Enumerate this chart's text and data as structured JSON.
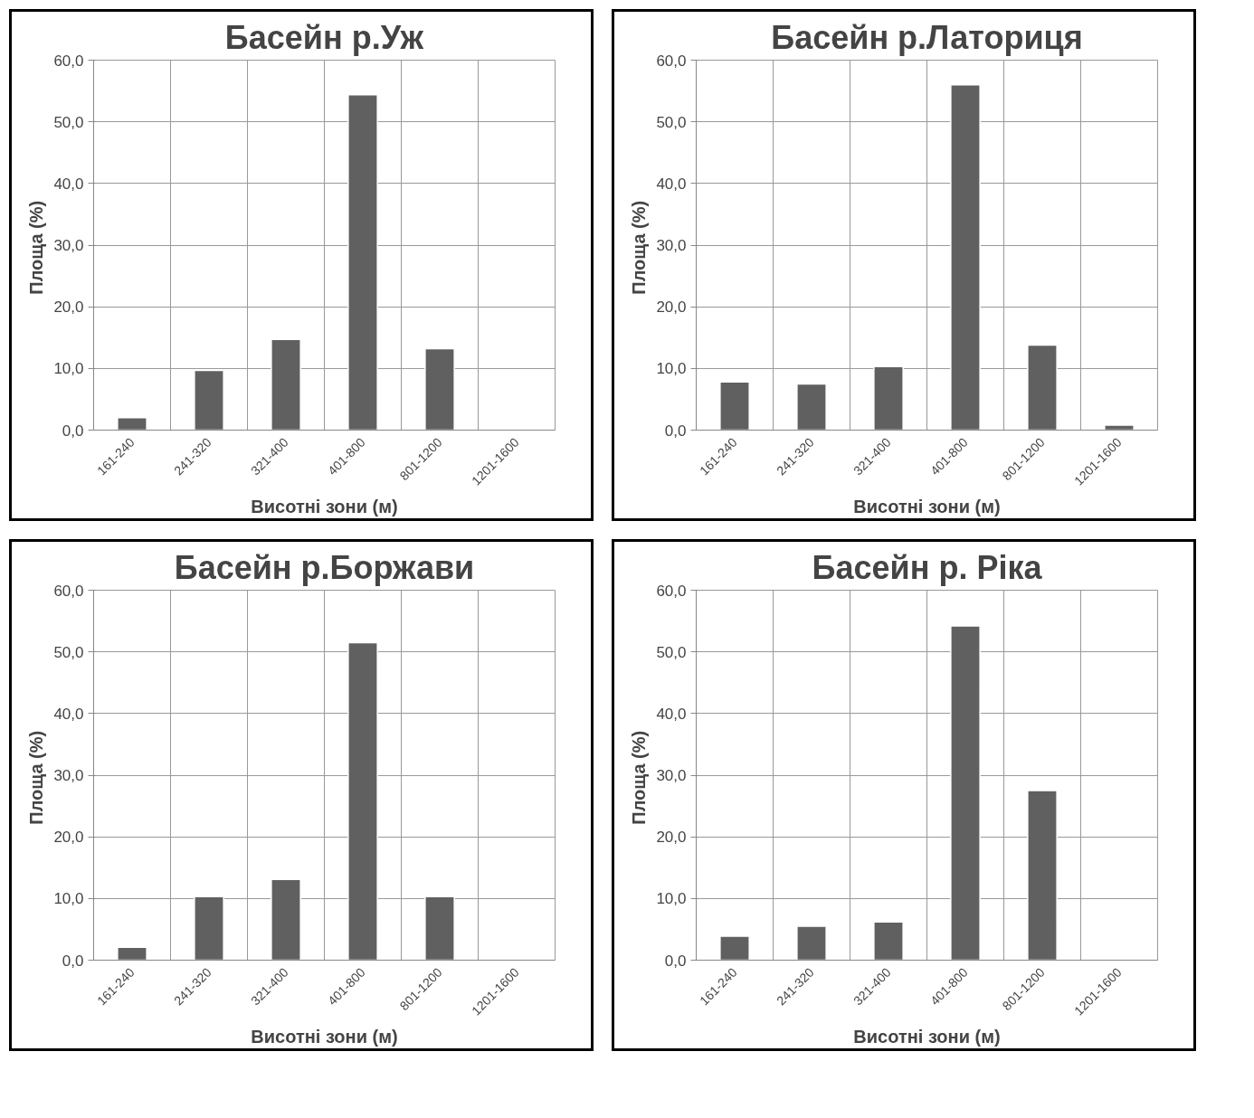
{
  "chart_data": [
    {
      "type": "bar",
      "title": "Басейн р.Уж",
      "xlabel": "Висотні зони (м)",
      "ylabel": "Площа  (%)",
      "categories": [
        "161-240",
        "241-320",
        "321-400",
        "401-800",
        "801-1200",
        "1201-1600"
      ],
      "values": [
        2.0,
        9.7,
        14.7,
        54.4,
        13.2,
        0.1
      ],
      "color": "#606060",
      "ylim": [
        0,
        60
      ],
      "yticks": [
        {
          "value": 0,
          "label": "0,0"
        },
        {
          "value": 10,
          "label": "10,0"
        },
        {
          "value": 20,
          "label": "20,0"
        },
        {
          "value": 30,
          "label": "30,0"
        },
        {
          "value": 40,
          "label": "40,0"
        },
        {
          "value": 50,
          "label": "50,0"
        },
        {
          "value": 60,
          "label": "60,0"
        }
      ],
      "grid": true
    },
    {
      "type": "bar",
      "title": "Басейн р.Латориця",
      "xlabel": "Висотні зони (м)",
      "ylabel": "Площа  (%)",
      "categories": [
        "161-240",
        "241-320",
        "321-400",
        "401-800",
        "801-1200",
        "1201-1600"
      ],
      "values": [
        7.8,
        7.5,
        10.3,
        56.0,
        13.8,
        0.8
      ],
      "color": "#606060",
      "ylim": [
        0,
        60
      ],
      "yticks": [
        {
          "value": 0,
          "label": "0,0"
        },
        {
          "value": 10,
          "label": "10,0"
        },
        {
          "value": 20,
          "label": "20,0"
        },
        {
          "value": 30,
          "label": "30,0"
        },
        {
          "value": 40,
          "label": "40,0"
        },
        {
          "value": 50,
          "label": "50,0"
        },
        {
          "value": 60,
          "label": "60,0"
        }
      ],
      "grid": true
    },
    {
      "type": "bar",
      "title": "Басейн р.Боржави",
      "xlabel": "Висотні зони (м)",
      "ylabel": "Площа  (%)",
      "categories": [
        "161-240",
        "241-320",
        "321-400",
        "401-800",
        "801-1200",
        "1201-1600"
      ],
      "values": [
        2.1,
        10.3,
        13.1,
        51.5,
        10.3,
        0.1
      ],
      "color": "#606060",
      "ylim": [
        0,
        60
      ],
      "yticks": [
        {
          "value": 0,
          "label": "0,0"
        },
        {
          "value": 10,
          "label": "10,0"
        },
        {
          "value": 20,
          "label": "20,0"
        },
        {
          "value": 30,
          "label": "30,0"
        },
        {
          "value": 40,
          "label": "40,0"
        },
        {
          "value": 50,
          "label": "50,0"
        },
        {
          "value": 60,
          "label": "60,0"
        }
      ],
      "grid": true
    },
    {
      "type": "bar",
      "title": "Басейн р. Ріка",
      "xlabel": "Висотні зони (м)",
      "ylabel": "Площа  (%)",
      "categories": [
        "161-240",
        "241-320",
        "321-400",
        "401-800",
        "801-1200",
        "1201-1600"
      ],
      "values": [
        3.9,
        5.5,
        6.2,
        54.2,
        27.5,
        0.1
      ],
      "color": "#606060",
      "ylim": [
        0,
        60
      ],
      "yticks": [
        {
          "value": 0,
          "label": "0,0"
        },
        {
          "value": 10,
          "label": "10,0"
        },
        {
          "value": 20,
          "label": "20,0"
        },
        {
          "value": 30,
          "label": "30,0"
        },
        {
          "value": 40,
          "label": "40,0"
        },
        {
          "value": 50,
          "label": "50,0"
        },
        {
          "value": 60,
          "label": "60,0"
        }
      ],
      "grid": true
    }
  ]
}
